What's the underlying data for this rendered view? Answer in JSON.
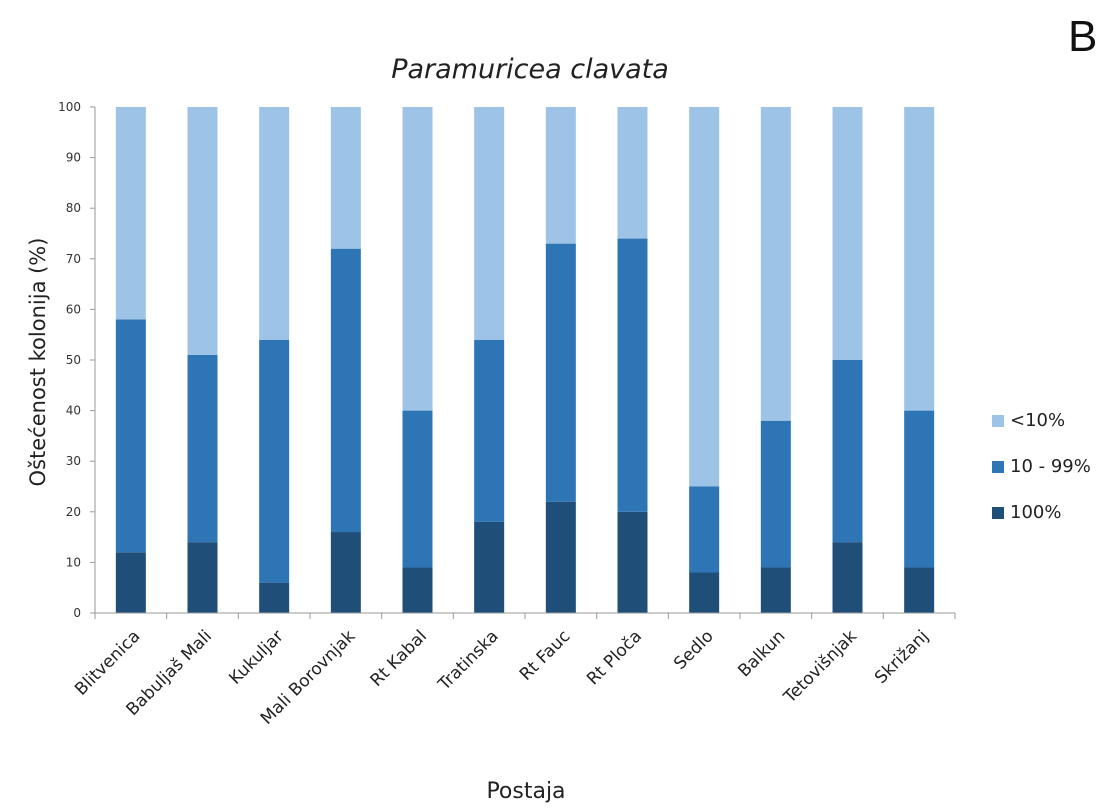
{
  "panel_label": "B",
  "chart_data": {
    "type": "bar",
    "stacked": true,
    "title": "Paramuricea clavata",
    "xlabel": "Postaja",
    "ylabel": "Oštećenost kolonija (%)",
    "ylim": [
      0,
      100
    ],
    "yticks": [
      "0",
      "10",
      "20",
      "30",
      "40",
      "50",
      "60",
      "70",
      "80",
      "90",
      "100"
    ],
    "categories": [
      "Blitvenica",
      "Babuljaš Mali",
      "Kukuljar",
      "Mali Borovnjak",
      "Rt Kabal",
      "Tratinska",
      "Rt Fauc",
      "Rt Ploča",
      "Sedlo",
      "Balkun",
      "Tetovišnjak",
      "Skrižanj"
    ],
    "series": [
      {
        "name": "100%",
        "color": "#1f4e79",
        "values": [
          12,
          14,
          6,
          16,
          9,
          18,
          22,
          20,
          8,
          9,
          14,
          9
        ]
      },
      {
        "name": "10 - 99%",
        "color": "#2e75b6",
        "values": [
          46,
          37,
          48,
          56,
          31,
          36,
          51,
          54,
          17,
          29,
          36,
          31
        ]
      },
      {
        "name": "<10%",
        "color": "#9dc3e6",
        "values": [
          42,
          49,
          46,
          28,
          60,
          46,
          27,
          26,
          75,
          62,
          50,
          60
        ]
      }
    ],
    "legend_order": [
      "<10%",
      "10 - 99%",
      "100%"
    ],
    "legend_position": "right",
    "grid": false
  }
}
